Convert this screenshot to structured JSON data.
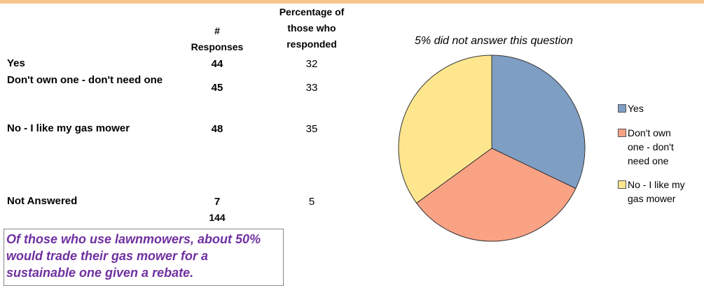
{
  "table": {
    "headers": [
      "# Responses",
      "Percentage of those who responded"
    ],
    "rows": [
      [
        "Yes",
        44,
        32
      ],
      [
        "Don't own one - don't need one",
        45,
        33
      ],
      [
        "No - I like my gas mower",
        48,
        35
      ],
      [
        "Not Answered",
        7,
        5
      ]
    ],
    "total": 144,
    "note": "Of those who use lawnmowers, about 50% would trade their gas mower for a sustainable one given a rebate."
  },
  "chart_data": {
    "type": "pie",
    "subtitle": "5% did not answer this question",
    "categories": [
      "Yes",
      "Don't own one - don't need one",
      "No - I like my gas mower"
    ],
    "values": [
      44,
      45,
      48
    ],
    "colors": [
      "#7f9ec3",
      "#f9a284",
      "#fde68e"
    ]
  }
}
